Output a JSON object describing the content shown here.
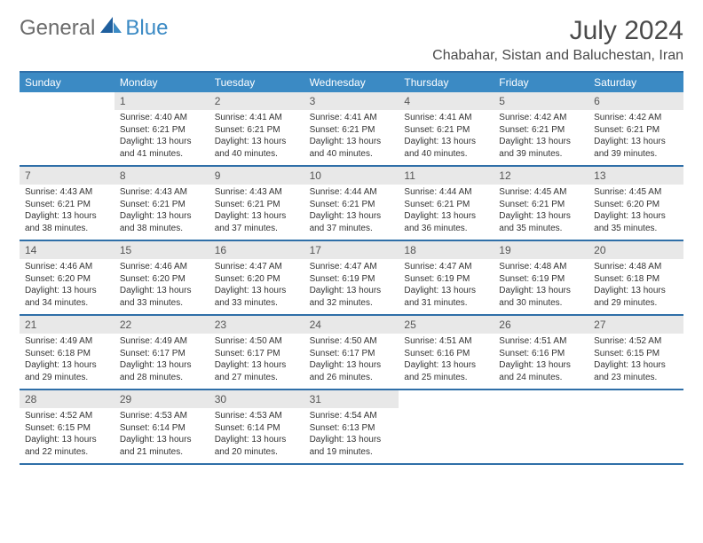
{
  "brand": {
    "word1": "General",
    "word2": "Blue"
  },
  "title": "July 2024",
  "location": "Chabahar, Sistan and Baluchestan, Iran",
  "colors": {
    "header_bg": "#3b8ac4",
    "rule": "#2f6fa8",
    "daynum_bg": "#e8e8e8",
    "text": "#333333",
    "title_text": "#4a4a4a"
  },
  "weekdays": [
    "Sunday",
    "Monday",
    "Tuesday",
    "Wednesday",
    "Thursday",
    "Friday",
    "Saturday"
  ],
  "weeks": [
    [
      {
        "n": "",
        "sr": "",
        "ss": "",
        "dl": ""
      },
      {
        "n": "1",
        "sr": "Sunrise: 4:40 AM",
        "ss": "Sunset: 6:21 PM",
        "dl": "Daylight: 13 hours and 41 minutes."
      },
      {
        "n": "2",
        "sr": "Sunrise: 4:41 AM",
        "ss": "Sunset: 6:21 PM",
        "dl": "Daylight: 13 hours and 40 minutes."
      },
      {
        "n": "3",
        "sr": "Sunrise: 4:41 AM",
        "ss": "Sunset: 6:21 PM",
        "dl": "Daylight: 13 hours and 40 minutes."
      },
      {
        "n": "4",
        "sr": "Sunrise: 4:41 AM",
        "ss": "Sunset: 6:21 PM",
        "dl": "Daylight: 13 hours and 40 minutes."
      },
      {
        "n": "5",
        "sr": "Sunrise: 4:42 AM",
        "ss": "Sunset: 6:21 PM",
        "dl": "Daylight: 13 hours and 39 minutes."
      },
      {
        "n": "6",
        "sr": "Sunrise: 4:42 AM",
        "ss": "Sunset: 6:21 PM",
        "dl": "Daylight: 13 hours and 39 minutes."
      }
    ],
    [
      {
        "n": "7",
        "sr": "Sunrise: 4:43 AM",
        "ss": "Sunset: 6:21 PM",
        "dl": "Daylight: 13 hours and 38 minutes."
      },
      {
        "n": "8",
        "sr": "Sunrise: 4:43 AM",
        "ss": "Sunset: 6:21 PM",
        "dl": "Daylight: 13 hours and 38 minutes."
      },
      {
        "n": "9",
        "sr": "Sunrise: 4:43 AM",
        "ss": "Sunset: 6:21 PM",
        "dl": "Daylight: 13 hours and 37 minutes."
      },
      {
        "n": "10",
        "sr": "Sunrise: 4:44 AM",
        "ss": "Sunset: 6:21 PM",
        "dl": "Daylight: 13 hours and 37 minutes."
      },
      {
        "n": "11",
        "sr": "Sunrise: 4:44 AM",
        "ss": "Sunset: 6:21 PM",
        "dl": "Daylight: 13 hours and 36 minutes."
      },
      {
        "n": "12",
        "sr": "Sunrise: 4:45 AM",
        "ss": "Sunset: 6:21 PM",
        "dl": "Daylight: 13 hours and 35 minutes."
      },
      {
        "n": "13",
        "sr": "Sunrise: 4:45 AM",
        "ss": "Sunset: 6:20 PM",
        "dl": "Daylight: 13 hours and 35 minutes."
      }
    ],
    [
      {
        "n": "14",
        "sr": "Sunrise: 4:46 AM",
        "ss": "Sunset: 6:20 PM",
        "dl": "Daylight: 13 hours and 34 minutes."
      },
      {
        "n": "15",
        "sr": "Sunrise: 4:46 AM",
        "ss": "Sunset: 6:20 PM",
        "dl": "Daylight: 13 hours and 33 minutes."
      },
      {
        "n": "16",
        "sr": "Sunrise: 4:47 AM",
        "ss": "Sunset: 6:20 PM",
        "dl": "Daylight: 13 hours and 33 minutes."
      },
      {
        "n": "17",
        "sr": "Sunrise: 4:47 AM",
        "ss": "Sunset: 6:19 PM",
        "dl": "Daylight: 13 hours and 32 minutes."
      },
      {
        "n": "18",
        "sr": "Sunrise: 4:47 AM",
        "ss": "Sunset: 6:19 PM",
        "dl": "Daylight: 13 hours and 31 minutes."
      },
      {
        "n": "19",
        "sr": "Sunrise: 4:48 AM",
        "ss": "Sunset: 6:19 PM",
        "dl": "Daylight: 13 hours and 30 minutes."
      },
      {
        "n": "20",
        "sr": "Sunrise: 4:48 AM",
        "ss": "Sunset: 6:18 PM",
        "dl": "Daylight: 13 hours and 29 minutes."
      }
    ],
    [
      {
        "n": "21",
        "sr": "Sunrise: 4:49 AM",
        "ss": "Sunset: 6:18 PM",
        "dl": "Daylight: 13 hours and 29 minutes."
      },
      {
        "n": "22",
        "sr": "Sunrise: 4:49 AM",
        "ss": "Sunset: 6:17 PM",
        "dl": "Daylight: 13 hours and 28 minutes."
      },
      {
        "n": "23",
        "sr": "Sunrise: 4:50 AM",
        "ss": "Sunset: 6:17 PM",
        "dl": "Daylight: 13 hours and 27 minutes."
      },
      {
        "n": "24",
        "sr": "Sunrise: 4:50 AM",
        "ss": "Sunset: 6:17 PM",
        "dl": "Daylight: 13 hours and 26 minutes."
      },
      {
        "n": "25",
        "sr": "Sunrise: 4:51 AM",
        "ss": "Sunset: 6:16 PM",
        "dl": "Daylight: 13 hours and 25 minutes."
      },
      {
        "n": "26",
        "sr": "Sunrise: 4:51 AM",
        "ss": "Sunset: 6:16 PM",
        "dl": "Daylight: 13 hours and 24 minutes."
      },
      {
        "n": "27",
        "sr": "Sunrise: 4:52 AM",
        "ss": "Sunset: 6:15 PM",
        "dl": "Daylight: 13 hours and 23 minutes."
      }
    ],
    [
      {
        "n": "28",
        "sr": "Sunrise: 4:52 AM",
        "ss": "Sunset: 6:15 PM",
        "dl": "Daylight: 13 hours and 22 minutes."
      },
      {
        "n": "29",
        "sr": "Sunrise: 4:53 AM",
        "ss": "Sunset: 6:14 PM",
        "dl": "Daylight: 13 hours and 21 minutes."
      },
      {
        "n": "30",
        "sr": "Sunrise: 4:53 AM",
        "ss": "Sunset: 6:14 PM",
        "dl": "Daylight: 13 hours and 20 minutes."
      },
      {
        "n": "31",
        "sr": "Sunrise: 4:54 AM",
        "ss": "Sunset: 6:13 PM",
        "dl": "Daylight: 13 hours and 19 minutes."
      },
      {
        "n": "",
        "sr": "",
        "ss": "",
        "dl": ""
      },
      {
        "n": "",
        "sr": "",
        "ss": "",
        "dl": ""
      },
      {
        "n": "",
        "sr": "",
        "ss": "",
        "dl": ""
      }
    ]
  ]
}
